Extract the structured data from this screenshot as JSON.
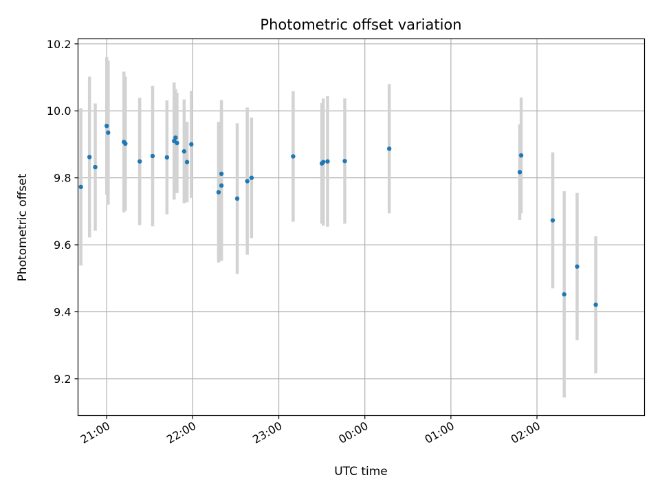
{
  "chart_data": {
    "type": "scatter",
    "title": "Photometric offset variation",
    "xlabel": "UTC time",
    "ylabel": "Photometric offset",
    "grid": true,
    "colors": {
      "point": "#1f77b4",
      "errorbar": "#d3d3d3",
      "grid": "#b0b0b0"
    },
    "xlim": [
      "20:40",
      "27:15"
    ],
    "ylim": [
      9.09,
      10.215
    ],
    "x_ticks": [
      {
        "value": "21:00",
        "label": "21:00"
      },
      {
        "value": "22:00",
        "label": "22:00"
      },
      {
        "value": "23:00",
        "label": "23:00"
      },
      {
        "value": "24:00",
        "label": "00:00"
      },
      {
        "value": "25:00",
        "label": "01:00"
      },
      {
        "value": "26:00",
        "label": "02:00"
      }
    ],
    "y_ticks": [
      {
        "value": 9.2,
        "label": "9.2"
      },
      {
        "value": 9.4,
        "label": "9.4"
      },
      {
        "value": 9.6,
        "label": "9.6"
      },
      {
        "value": 9.8,
        "label": "9.8"
      },
      {
        "value": 10.0,
        "label": "10.0"
      },
      {
        "value": 10.2,
        "label": "10.2"
      }
    ],
    "series": [
      {
        "points": [
          {
            "x": "20:42",
            "y": 9.773,
            "err": 0.235
          },
          {
            "x": "20:48",
            "y": 9.862,
            "err": 0.24
          },
          {
            "x": "20:52",
            "y": 9.832,
            "err": 0.19
          },
          {
            "x": "21:00",
            "y": 9.955,
            "err": 0.205
          },
          {
            "x": "21:01",
            "y": 9.935,
            "err": 0.215
          },
          {
            "x": "21:12",
            "y": 9.907,
            "err": 0.21
          },
          {
            "x": "21:13",
            "y": 9.902,
            "err": 0.2
          },
          {
            "x": "21:23",
            "y": 9.849,
            "err": 0.19
          },
          {
            "x": "21:32",
            "y": 9.865,
            "err": 0.21
          },
          {
            "x": "21:42",
            "y": 9.861,
            "err": 0.17
          },
          {
            "x": "21:47",
            "y": 9.91,
            "err": 0.175
          },
          {
            "x": "21:48",
            "y": 9.92,
            "err": 0.145
          },
          {
            "x": "21:49",
            "y": 9.904,
            "err": 0.15
          },
          {
            "x": "21:54",
            "y": 9.879,
            "err": 0.155
          },
          {
            "x": "21:56",
            "y": 9.847,
            "err": 0.12
          },
          {
            "x": "21:59",
            "y": 9.9,
            "err": 0.16
          },
          {
            "x": "22:18",
            "y": 9.757,
            "err": 0.21
          },
          {
            "x": "22:20",
            "y": 9.812,
            "err": 0.22
          },
          {
            "x": "22:20",
            "y": 9.777,
            "err": 0.225
          },
          {
            "x": "22:31",
            "y": 9.738,
            "err": 0.225
          },
          {
            "x": "22:38",
            "y": 9.79,
            "err": 0.22
          },
          {
            "x": "22:41",
            "y": 9.8,
            "err": 0.18
          },
          {
            "x": "23:10",
            "y": 9.864,
            "err": 0.195
          },
          {
            "x": "23:30",
            "y": 9.843,
            "err": 0.18
          },
          {
            "x": "23:31",
            "y": 9.847,
            "err": 0.19
          },
          {
            "x": "23:34",
            "y": 9.849,
            "err": 0.195
          },
          {
            "x": "23:46",
            "y": 9.85,
            "err": 0.187
          },
          {
            "x": "24:17",
            "y": 9.887,
            "err": 0.193
          },
          {
            "x": "25:48",
            "y": 9.817,
            "err": 0.143
          },
          {
            "x": "25:49",
            "y": 9.867,
            "err": 0.173
          },
          {
            "x": "26:11",
            "y": 9.673,
            "err": 0.203
          },
          {
            "x": "26:19",
            "y": 9.452,
            "err": 0.308
          },
          {
            "x": "26:28",
            "y": 9.535,
            "err": 0.22
          },
          {
            "x": "26:41",
            "y": 9.421,
            "err": 0.205
          }
        ]
      }
    ]
  }
}
